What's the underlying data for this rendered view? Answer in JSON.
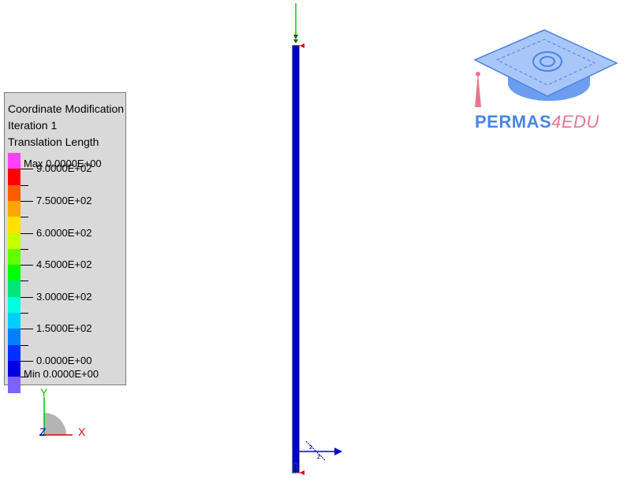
{
  "legend": {
    "title": "Coordinate Modification",
    "subtitle": "Iteration 1",
    "quantity": "Translation Length",
    "max_label": "Max 0.0000E+00",
    "min_label": "Min 0.0000E+00",
    "tick_labels": [
      "9.0000E+02",
      "7.5000E+02",
      "6.0000E+02",
      "4.5000E+02",
      "3.0000E+02",
      "1.5000E+02",
      "0.0000E+00"
    ],
    "colors": [
      "#ff40ff",
      "#ff0000",
      "#ff5a00",
      "#ffa500",
      "#ffe000",
      "#c8ff00",
      "#64ff00",
      "#00ff00",
      "#00e67a",
      "#00ffe0",
      "#00d0ff",
      "#0080ff",
      "#0030ff",
      "#0000e6",
      "#8060ff"
    ]
  },
  "triad": {
    "x_label": "X",
    "y_label": "Y",
    "z_label": "Z",
    "x_color": "#e00000",
    "y_color": "#00c000",
    "z_color": "#0000e0"
  },
  "logo": {
    "text_main": "PERMAS",
    "text_accent": "4EDU"
  },
  "model": {
    "beam_color": "#0000cc",
    "load_color": "#00cc00",
    "support_color": "#dd0000",
    "force_color": "#0000dd"
  }
}
